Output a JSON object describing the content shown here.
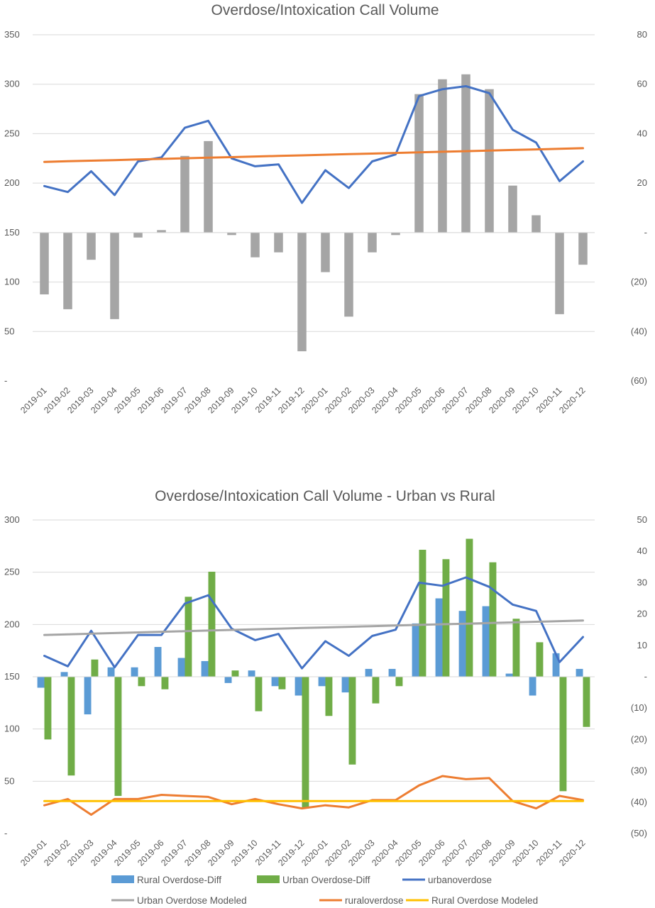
{
  "chart_data": [
    {
      "type": "bar+line",
      "title": "Overdose/Intoxication Call Volume",
      "categories": [
        "2019-01",
        "2019-02",
        "2019-03",
        "2019-04",
        "2019-05",
        "2019-06",
        "2019-07",
        "2019-08",
        "2019-09",
        "2019-10",
        "2019-11",
        "2019-12",
        "2020-01",
        "2020-02",
        "2020-03",
        "2020-04",
        "2020-05",
        "2020-06",
        "2020-07",
        "2020-08",
        "2020-09",
        "2020-10",
        "2020-11",
        "2020-12"
      ],
      "y_left": {
        "ylim": [
          0,
          350
        ],
        "ticks": [
          0,
          50,
          100,
          150,
          200,
          250,
          300,
          350
        ],
        "tick_labels": [
          "-",
          "50",
          "100",
          "150",
          "200",
          "250",
          "300",
          "350"
        ]
      },
      "y_right": {
        "ylim": [
          -60,
          80
        ],
        "ticks": [
          -60,
          -40,
          -20,
          0,
          20,
          40,
          60,
          80
        ],
        "tick_labels": [
          "(60)",
          "(40)",
          "(20)",
          "-",
          "20",
          "40",
          "60",
          "80"
        ]
      },
      "grid": true,
      "series": [
        {
          "kind": "bar",
          "axis": "right",
          "color": "#a5a5a5",
          "values": [
            -25,
            -31,
            -11,
            -35,
            -2,
            1,
            31,
            37,
            -1,
            -10,
            -8,
            -48,
            -16,
            -34,
            -8,
            -1,
            56,
            62,
            64,
            58,
            19,
            7,
            -33,
            -13
          ]
        },
        {
          "kind": "line",
          "axis": "left",
          "color": "#4472c4",
          "values": [
            197,
            191,
            212,
            188,
            222,
            226,
            256,
            263,
            225,
            217,
            219,
            180,
            213,
            195,
            222,
            229,
            288,
            295,
            298,
            291,
            254,
            241,
            202,
            222
          ]
        },
        {
          "kind": "line",
          "axis": "left",
          "color": "#ed7d31",
          "values": [
            221.5,
            222.1,
            222.7,
            223.3,
            223.9,
            224.5,
            225.1,
            225.7,
            226.3,
            226.9,
            227.5,
            228.1,
            228.7,
            229.3,
            229.9,
            230.5,
            231.1,
            231.7,
            232.3,
            232.9,
            233.5,
            234.1,
            234.7,
            235.3
          ]
        }
      ]
    },
    {
      "type": "bar+line",
      "title": "Overdose/Intoxication Call Volume - Urban vs Rural",
      "categories": [
        "2019-01",
        "2019-02",
        "2019-03",
        "2019-04",
        "2019-05",
        "2019-06",
        "2019-07",
        "2019-08",
        "2019-09",
        "2019-10",
        "2019-11",
        "2019-12",
        "2020-01",
        "2020-02",
        "2020-03",
        "2020-04",
        "2020-05",
        "2020-06",
        "2020-07",
        "2020-08",
        "2020-09",
        "2020-10",
        "2020-11",
        "2020-12"
      ],
      "y_left": {
        "ylim": [
          0,
          300
        ],
        "ticks": [
          0,
          50,
          100,
          150,
          200,
          250,
          300
        ],
        "tick_labels": [
          "-",
          "50",
          "100",
          "150",
          "200",
          "250",
          "300"
        ]
      },
      "y_right": {
        "ylim": [
          -50,
          50
        ],
        "ticks": [
          -50,
          -40,
          -30,
          -20,
          -10,
          0,
          10,
          20,
          30,
          40,
          50
        ],
        "tick_labels": [
          "(50)",
          "(40)",
          "(30)",
          "(20)",
          "(10)",
          "-",
          "10",
          "20",
          "30",
          "40",
          "50"
        ]
      },
      "grid": true,
      "legend_position": "bottom",
      "series": [
        {
          "name": "Rural Overdose-Diff",
          "kind": "bar",
          "axis": "right",
          "color": "#5b9bd5",
          "values": [
            -3.5,
            1.5,
            -12,
            3,
            3,
            9.5,
            6,
            5,
            -2,
            2,
            -3,
            -6,
            -3,
            -5,
            2.5,
            2.5,
            17,
            25,
            21,
            22.5,
            1,
            -6,
            7.5,
            2.5
          ]
        },
        {
          "name": "Urban Overdose-Diff",
          "kind": "bar",
          "axis": "right",
          "color": "#70ad47",
          "values": [
            -20,
            -31.5,
            5.5,
            -38,
            -3,
            -4,
            25.5,
            33.5,
            2,
            -11,
            -4,
            -42,
            -12.5,
            -28,
            -8.5,
            -3,
            40.5,
            37.5,
            44,
            36.5,
            18.5,
            11,
            -36.5,
            -16
          ]
        },
        {
          "name": "urbanoverdose",
          "kind": "line",
          "axis": "left",
          "color": "#4472c4",
          "values": [
            170,
            160,
            194,
            159,
            190,
            190,
            220,
            228,
            196,
            185,
            191,
            158,
            184,
            170,
            189,
            195,
            240,
            237,
            245,
            236,
            219,
            213,
            164,
            188
          ]
        },
        {
          "name": "Urban Overdose Modeled",
          "kind": "line",
          "axis": "left",
          "color": "#a5a5a5",
          "values": [
            190,
            190.6,
            191.2,
            191.8,
            192.4,
            193,
            193.6,
            194.2,
            194.8,
            195.4,
            196,
            196.6,
            197.2,
            197.8,
            198.4,
            199,
            199.6,
            200.2,
            200.8,
            201.4,
            202,
            202.6,
            203.2,
            203.8
          ]
        },
        {
          "name": "ruraloverdose",
          "kind": "line",
          "axis": "left",
          "color": "#ed7d31",
          "values": [
            27,
            33,
            18,
            33,
            33,
            37,
            36,
            35,
            28,
            33,
            28,
            24,
            27,
            25,
            32,
            32,
            46,
            55,
            52,
            53,
            31,
            24,
            36,
            32
          ]
        },
        {
          "name": "Rural Overdose Modeled",
          "kind": "line",
          "axis": "left",
          "color": "#ffc000",
          "values": [
            31,
            31,
            31,
            31,
            31,
            31,
            31,
            31,
            31,
            31,
            31,
            31,
            31,
            31,
            31,
            31,
            31,
            31,
            31,
            31,
            31,
            31,
            31,
            31
          ]
        }
      ]
    }
  ]
}
